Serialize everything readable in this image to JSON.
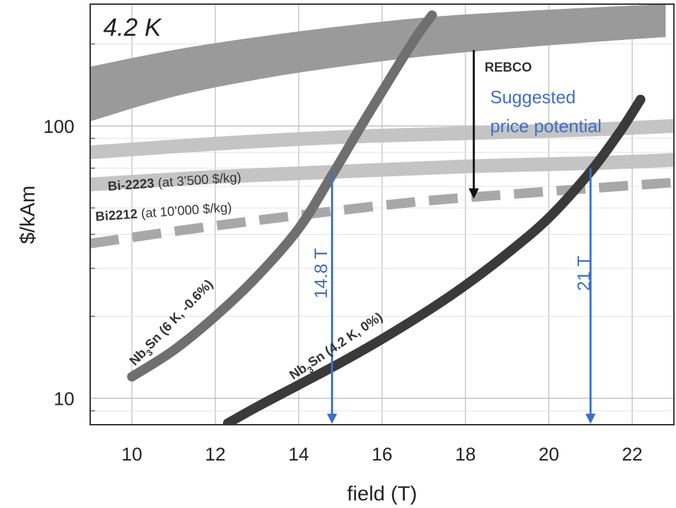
{
  "chart_data": {
    "type": "line",
    "corner_label": "4.2 K",
    "xlabel": "field (T)",
    "ylabel": "$/kAm",
    "xlim": [
      9,
      23
    ],
    "ylim": [
      8,
      280
    ],
    "y_scale": "log",
    "x_ticks": [
      "10",
      "12",
      "14",
      "16",
      "18",
      "20",
      "22"
    ],
    "y_ticks": [
      "10",
      "100"
    ],
    "grid": true,
    "series": [
      {
        "key": "rebco",
        "name": "REBCO",
        "color": "#9a9a9a",
        "style": "band",
        "x": [
          9,
          11,
          13,
          15,
          17,
          19,
          21,
          22.8
        ],
        "upper": [
          165,
          190,
          212,
          232,
          250,
          262,
          272,
          280
        ],
        "lower": [
          104,
          128,
          148,
          165,
          180,
          192,
          203,
          212
        ]
      },
      {
        "key": "bi2223",
        "name": "Bi-2223",
        "suffix": " (at 3’500 $/kg)",
        "color": "#c4c4c4",
        "style": "thick",
        "x": [
          9,
          12,
          15,
          18,
          21,
          23
        ],
        "y": [
          80,
          86,
          91,
          94,
          97,
          100
        ]
      },
      {
        "key": "bi2212",
        "name": "Bi2212",
        "suffix": " (at 10’000 $/kg)",
        "color": "#c4c4c4",
        "style": "thick",
        "x": [
          9,
          12,
          15,
          18,
          21,
          23
        ],
        "y": [
          61,
          65,
          68,
          71,
          73,
          75
        ]
      },
      {
        "key": "potential",
        "name": "",
        "color": "#a8a8a8",
        "style": "dashed",
        "x": [
          9,
          11,
          13,
          15,
          17,
          19,
          21,
          23
        ],
        "y": [
          37,
          41,
          45,
          49,
          53,
          56,
          59,
          62
        ]
      },
      {
        "key": "nb3sn_6k",
        "name": "Nb3Sn (6 K, -0.6%)",
        "color": "#6f6f6f",
        "style": "thick",
        "x": [
          10,
          11,
          12,
          13,
          14,
          14.8,
          15.5,
          16.2,
          16.8,
          17.2
        ],
        "y": [
          12,
          15,
          20,
          28,
          42,
          66,
          100,
          150,
          210,
          255
        ]
      },
      {
        "key": "nb3sn_42k",
        "name": "Nb3Sn (4.2 K, 0%)",
        "color": "#3a3a3a",
        "style": "thick",
        "x": [
          12.3,
          13,
          14,
          15,
          16,
          17,
          18,
          19,
          20,
          21,
          21.7,
          22.2
        ],
        "y": [
          8.1,
          9.3,
          11.2,
          13.5,
          16.5,
          20.5,
          26,
          34,
          46,
          68,
          95,
          125
        ]
      }
    ],
    "annotations": {
      "arrow_text": [
        "Suggested",
        "price potential"
      ],
      "arrow_x": 18.2,
      "arrow_from": 190,
      "arrow_to": 55,
      "markers": [
        {
          "label": "14.8 T",
          "x": 14.8,
          "from": 68,
          "to": 8.2
        },
        {
          "label": "21 T",
          "x": 21,
          "from": 70,
          "to": 8.2
        }
      ],
      "label_nb3sn_6k": {
        "base": "Nb",
        "sub": "3",
        "rest": "Sn (6 K, -0.6%)"
      },
      "label_nb3sn_42k": {
        "base": "Nb",
        "sub": "3",
        "rest": "Sn (4.2 K, 0%)"
      }
    }
  }
}
